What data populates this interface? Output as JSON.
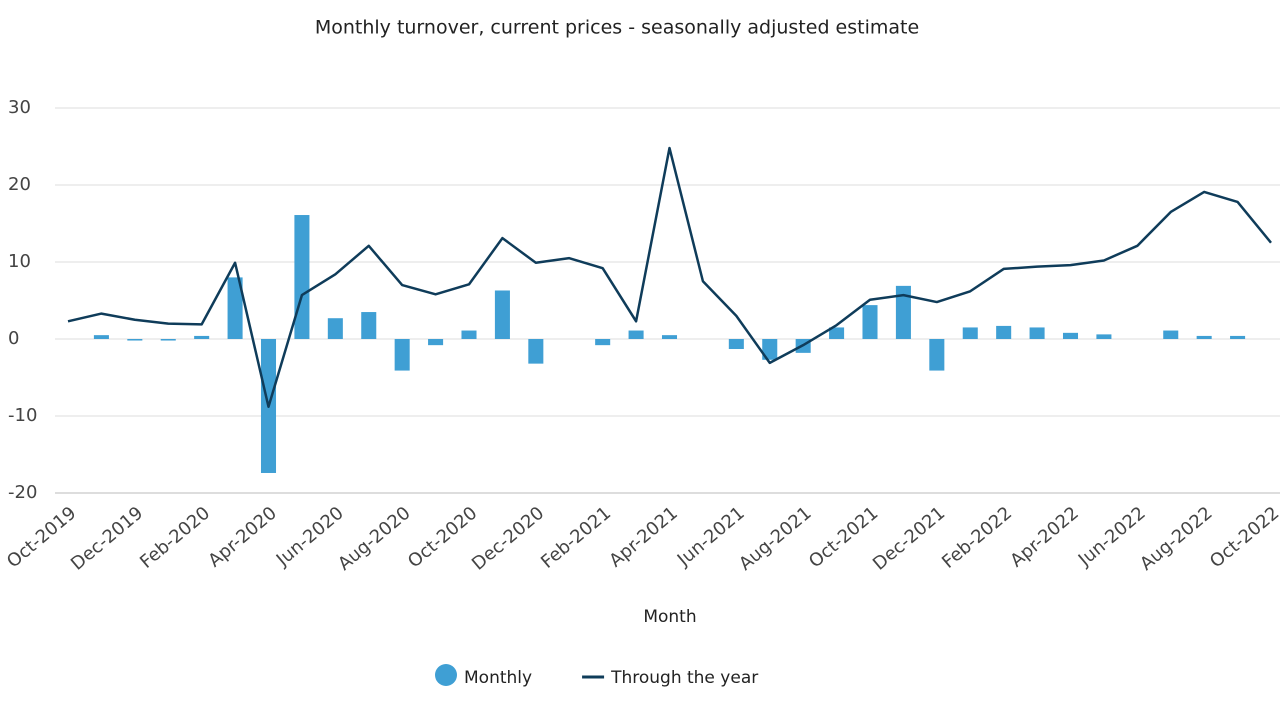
{
  "chart_data": {
    "type": "bar-line",
    "title": "Monthly turnover, current prices - seasonally adjusted estimate",
    "x_label": "Month",
    "categories": [
      "Oct-2019",
      null,
      "Dec-2019",
      null,
      "Feb-2020",
      null,
      "Apr-2020",
      null,
      "Jun-2020",
      null,
      "Aug-2020",
      null,
      "Oct-2020",
      null,
      "Dec-2020",
      null,
      "Feb-2021",
      null,
      "Apr-2021",
      null,
      "Jun-2021",
      null,
      "Aug-2021",
      null,
      "Oct-2021",
      null,
      "Dec-2021",
      null,
      "Feb-2022",
      null,
      "Apr-2022",
      null,
      "Jun-2022",
      null,
      "Aug-2022",
      null,
      "Oct-2022"
    ],
    "series": [
      {
        "name": "Monthly",
        "type": "bar",
        "color": "#3f9fd4",
        "values": [
          0,
          0.5,
          -0.2,
          -0.2,
          0.4,
          8.0,
          -17.4,
          16.1,
          2.7,
          3.5,
          -4.1,
          -0.8,
          1.1,
          6.3,
          -3.2,
          0,
          -0.8,
          1.1,
          0.5,
          0,
          -1.3,
          -2.7,
          -1.8,
          1.5,
          4.4,
          6.9,
          -4.1,
          1.5,
          1.7,
          1.5,
          0.8,
          0.6,
          0,
          1.1,
          0.4,
          0.4,
          0
        ]
      },
      {
        "name": "Through the year",
        "type": "line",
        "color": "#0f3c5a",
        "values": [
          2.3,
          3.3,
          2.5,
          2.0,
          1.9,
          9.9,
          -8.8,
          5.7,
          8.4,
          12.1,
          7.0,
          5.8,
          7.1,
          13.1,
          9.9,
          10.5,
          9.2,
          2.3,
          24.8,
          7.5,
          3.0,
          -3.1,
          -0.8,
          1.8,
          5.1,
          5.7,
          4.8,
          6.2,
          9.1,
          9.4,
          9.6,
          10.2,
          12.1,
          16.5,
          19.1,
          17.8,
          12.5
        ]
      }
    ],
    "ylim": [
      -20,
      30
    ],
    "yticks": [
      -20,
      -10,
      0,
      10,
      20,
      30
    ],
    "grid": true,
    "legend": "bottom"
  }
}
